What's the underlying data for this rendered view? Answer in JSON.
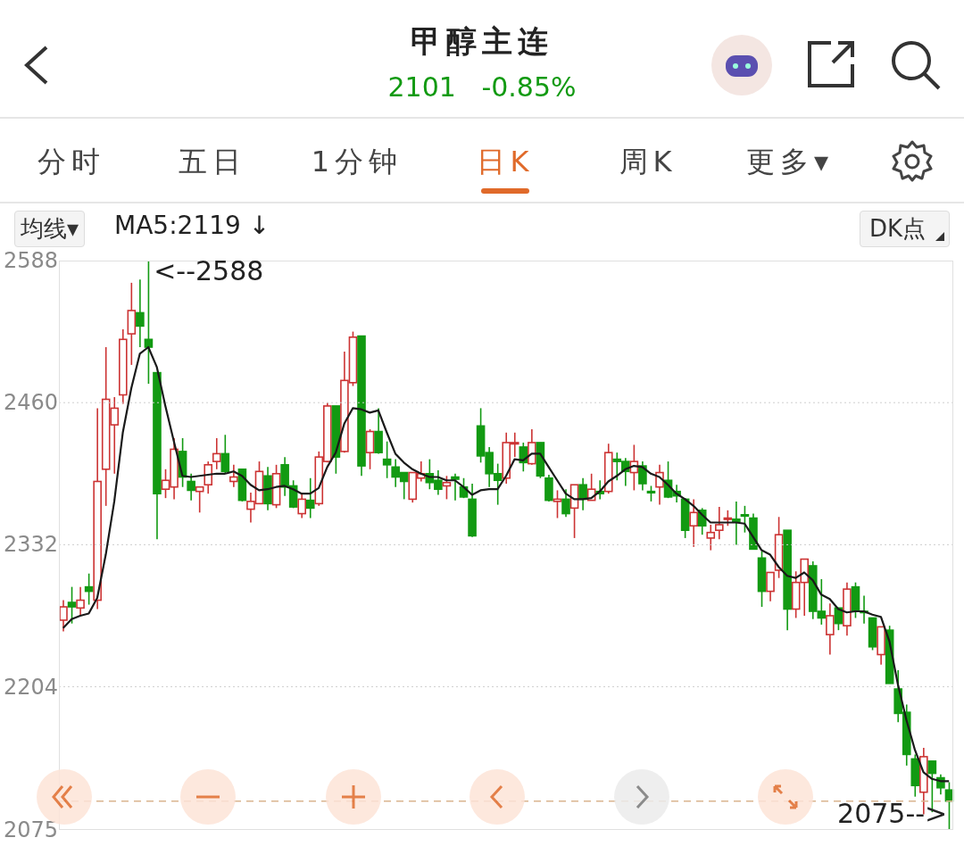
{
  "chart_data": {
    "type": "candlestick",
    "title": "甲醇主连",
    "subtitle": "2101   -0.85%",
    "annotations": [
      "分时",
      "五日",
      "1分钟",
      "日K",
      "周K",
      "更多▾",
      "均线▾",
      "MA5:2119 ↓",
      "DK点",
      "<--2588",
      "2075-->"
    ],
    "categories": [
      null,
      null,
      null,
      null,
      null,
      null,
      null,
      null,
      null,
      null,
      null,
      null,
      null,
      null,
      null,
      null,
      null,
      null,
      null,
      null,
      null,
      null,
      null,
      null,
      null,
      null,
      null,
      null,
      null,
      null,
      null,
      null,
      null,
      null,
      null,
      null,
      null,
      null,
      null,
      null,
      null,
      null,
      null,
      null,
      null,
      null,
      null,
      null,
      null,
      null,
      null,
      null,
      null,
      null,
      null,
      null,
      null,
      null,
      null,
      null,
      null,
      null,
      null,
      null,
      null,
      null,
      null,
      null,
      null,
      null,
      null,
      null,
      null,
      null,
      null,
      null,
      null,
      null,
      null,
      null,
      null,
      null,
      null,
      null,
      null,
      null,
      null,
      null,
      null,
      null,
      null,
      null,
      null,
      null,
      null,
      null,
      null,
      null,
      null,
      null,
      null,
      null,
      null,
      null,
      null
    ],
    "ohlc": [
      [
        2264,
        2282,
        2254,
        2276
      ],
      [
        2280,
        2294,
        2261,
        2276
      ],
      [
        2275,
        2294,
        2268,
        2282
      ],
      [
        2294,
        2306,
        2278,
        2290
      ],
      [
        2282,
        2455,
        2274,
        2389
      ],
      [
        2400,
        2510,
        2367,
        2463
      ],
      [
        2440,
        2465,
        2396,
        2455
      ],
      [
        2467,
        2526,
        2459,
        2517
      ],
      [
        2522,
        2568,
        2494,
        2543
      ],
      [
        2541,
        2571,
        2510,
        2529
      ],
      [
        2517,
        2588,
        2477,
        2510
      ],
      [
        2487,
        2487,
        2337,
        2378
      ],
      [
        2382,
        2400,
        2374,
        2390
      ],
      [
        2384,
        2428,
        2373,
        2418
      ],
      [
        2416,
        2428,
        2384,
        2393
      ],
      [
        2389,
        2396,
        2372,
        2381
      ],
      [
        2380,
        2384,
        2361,
        2384
      ],
      [
        2386,
        2407,
        2378,
        2404
      ],
      [
        2407,
        2428,
        2400,
        2414
      ],
      [
        2414,
        2431,
        2396,
        2398
      ],
      [
        2389,
        2404,
        2384,
        2393
      ],
      [
        2400,
        2400,
        2371,
        2372
      ],
      [
        2364,
        2379,
        2352,
        2371
      ],
      [
        2369,
        2407,
        2369,
        2398
      ],
      [
        2394,
        2402,
        2363,
        2369
      ],
      [
        2368,
        2404,
        2365,
        2396
      ],
      [
        2404,
        2411,
        2376,
        2384
      ],
      [
        2385,
        2390,
        2365,
        2366
      ],
      [
        2360,
        2378,
        2356,
        2373
      ],
      [
        2372,
        2392,
        2356,
        2365
      ],
      [
        2369,
        2416,
        2367,
        2411
      ],
      [
        2407,
        2460,
        2406,
        2457
      ],
      [
        2457,
        2457,
        2396,
        2411
      ],
      [
        2416,
        2506,
        2415,
        2480
      ],
      [
        2478,
        2524,
        2475,
        2519
      ],
      [
        2520,
        2520,
        2394,
        2403
      ],
      [
        2415,
        2436,
        2400,
        2434
      ],
      [
        2434,
        2455,
        2414,
        2415
      ],
      [
        2409,
        2425,
        2392,
        2404
      ],
      [
        2402,
        2409,
        2384,
        2393
      ],
      [
        2397,
        2397,
        2373,
        2389
      ],
      [
        2373,
        2397,
        2370,
        2397
      ],
      [
        2392,
        2407,
        2389,
        2396
      ],
      [
        2396,
        2409,
        2382,
        2388
      ],
      [
        2390,
        2399,
        2377,
        2382
      ],
      [
        2385,
        2394,
        2373,
        2388
      ],
      [
        2393,
        2396,
        2372,
        2391
      ],
      [
        2384,
        2392,
        2374,
        2375
      ],
      [
        2373,
        2387,
        2339,
        2340
      ],
      [
        2439,
        2455,
        2406,
        2412
      ],
      [
        2415,
        2420,
        2384,
        2396
      ],
      [
        2396,
        2405,
        2368,
        2390
      ],
      [
        2392,
        2433,
        2387,
        2424
      ],
      [
        2423,
        2433,
        2411,
        2424
      ],
      [
        2420,
        2424,
        2398,
        2406
      ],
      [
        2405,
        2436,
        2404,
        2424
      ],
      [
        2424,
        2424,
        2392,
        2394
      ],
      [
        2392,
        2395,
        2371,
        2372
      ],
      [
        2371,
        2381,
        2356,
        2373
      ],
      [
        2373,
        2382,
        2357,
        2360
      ],
      [
        2365,
        2386,
        2338,
        2386
      ],
      [
        2386,
        2392,
        2363,
        2373
      ],
      [
        2372,
        2396,
        2372,
        2382
      ],
      [
        2380,
        2390,
        2373,
        2378
      ],
      [
        2380,
        2423,
        2378,
        2415
      ],
      [
        2409,
        2415,
        2390,
        2407
      ],
      [
        2407,
        2410,
        2385,
        2398
      ],
      [
        2397,
        2422,
        2381,
        2407
      ],
      [
        2403,
        2407,
        2381,
        2387
      ],
      [
        2380,
        2385,
        2371,
        2379
      ],
      [
        2384,
        2404,
        2368,
        2397
      ],
      [
        2390,
        2407,
        2374,
        2375
      ],
      [
        2380,
        2386,
        2370,
        2376
      ],
      [
        2373,
        2374,
        2338,
        2345
      ],
      [
        2349,
        2373,
        2330,
        2361
      ],
      [
        2363,
        2365,
        2341,
        2349
      ],
      [
        2338,
        2350,
        2327,
        2343
      ],
      [
        2345,
        2366,
        2337,
        2350
      ],
      [
        2355,
        2363,
        2349,
        2356
      ],
      [
        2355,
        2371,
        2332,
        2353
      ],
      [
        2359,
        2367,
        2343,
        2358
      ],
      [
        2356,
        2360,
        2328,
        2328
      ],
      [
        2320,
        2326,
        2276,
        2290
      ],
      [
        2290,
        2307,
        2281,
        2307
      ],
      [
        2309,
        2357,
        2302,
        2341
      ],
      [
        2345,
        2345,
        2255,
        2274
      ],
      [
        2274,
        2308,
        2266,
        2298
      ],
      [
        2298,
        2319,
        2268,
        2319
      ],
      [
        2313,
        2317,
        2265,
        2272
      ],
      [
        2272,
        2301,
        2260,
        2266
      ],
      [
        2251,
        2279,
        2233,
        2268
      ],
      [
        2275,
        2275,
        2255,
        2261
      ],
      [
        2259,
        2298,
        2250,
        2292
      ],
      [
        2294,
        2298,
        2266,
        2272
      ],
      [
        2272,
        2286,
        2261,
        2271
      ],
      [
        2266,
        2266,
        2237,
        2240
      ],
      [
        2233,
        2258,
        2224,
        2258
      ],
      [
        2255,
        2259,
        2207,
        2207
      ],
      [
        2202,
        2219,
        2172,
        2180
      ],
      [
        2181,
        2188,
        2133,
        2143
      ],
      [
        2139,
        2143,
        2105,
        2115
      ],
      [
        2109,
        2149,
        2089,
        2141
      ],
      [
        2137,
        2137,
        2091,
        2126
      ],
      [
        2122,
        2125,
        2107,
        2113
      ],
      [
        2111,
        2118,
        2075,
        2101
      ]
    ],
    "series": [
      {
        "type": "line",
        "color": "#1a1a1a",
        "values": [
          2257,
          2265,
          2268,
          2270,
          2284,
          2323,
          2371,
          2433,
          2473,
          2504,
          2510,
          2492,
          2457,
          2425,
          2394,
          2393,
          2394,
          2395,
          2396,
          2396,
          2398,
          2394,
          2386,
          2381,
          2382,
          2384,
          2385,
          2382,
          2378,
          2378,
          2383,
          2402,
          2415,
          2441,
          2455,
          2454,
          2451,
          2453,
          2433,
          2414,
          2406,
          2400,
          2396,
          2393,
          2393,
          2390,
          2390,
          2384,
          2377,
          2381,
          2382,
          2382,
          2394,
          2409,
          2408,
          2414,
          2414,
          2402,
          2390,
          2378,
          2373,
          2373,
          2374,
          2380,
          2389,
          2394,
          2400,
          2403,
          2402,
          2396,
          2393,
          2386,
          2378,
          2373,
          2367,
          2359,
          2352,
          2352,
          2352,
          2352,
          2351,
          2339,
          2327,
          2323,
          2312,
          2304,
          2302,
          2307,
          2300,
          2287,
          2283,
          2274,
          2271,
          2272,
          2272,
          2269,
          2267,
          2245,
          2206,
          2174,
          2147,
          2127,
          2121,
          2119,
          2119
        ]
      }
    ],
    "ylim": [
      2075,
      2588
    ],
    "yticks": [
      2588,
      2460,
      2332,
      2204,
      2075
    ],
    "grid": "y",
    "tick_labels": "y",
    "marker": "none",
    "line_style": "solid",
    "ref_lines": [
      {
        "axis": "y",
        "value": 2101,
        "color": "#d9b48f",
        "line_style": "dashed"
      }
    ]
  }
}
